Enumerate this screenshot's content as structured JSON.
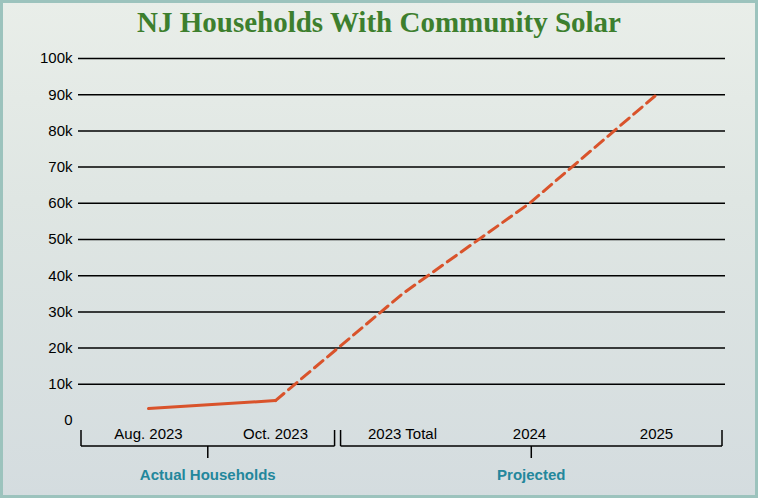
{
  "chart_data": {
    "type": "line",
    "title": "NJ Households With Community Solar",
    "categories": [
      "Aug. 2023",
      "Oct. 2023",
      "2023 Total",
      "2024",
      "2025"
    ],
    "series": [
      {
        "name": "Actual Households",
        "color": "#d9532b",
        "line_style": "solid",
        "values": [
          3300,
          5500,
          null,
          null,
          null
        ]
      },
      {
        "name": "Projected",
        "color": "#d9532b",
        "line_style": "dashed",
        "values": [
          null,
          5500,
          35000,
          60000,
          90000
        ]
      }
    ],
    "ylim": [
      0,
      100000
    ],
    "yticks": [
      0,
      {
        "value": 10000,
        "label": "10k"
      },
      {
        "value": 20000,
        "label": "20k"
      },
      {
        "value": 30000,
        "label": "30k"
      },
      {
        "value": 40000,
        "label": "40k"
      },
      {
        "value": 50000,
        "label": "50k"
      },
      {
        "value": 60000,
        "label": "60k"
      },
      {
        "value": 70000,
        "label": "70k"
      },
      {
        "value": 80000,
        "label": "80k"
      },
      {
        "value": 90000,
        "label": "90k"
      },
      {
        "value": 100000,
        "label": "100k"
      }
    ],
    "grid": true
  }
}
